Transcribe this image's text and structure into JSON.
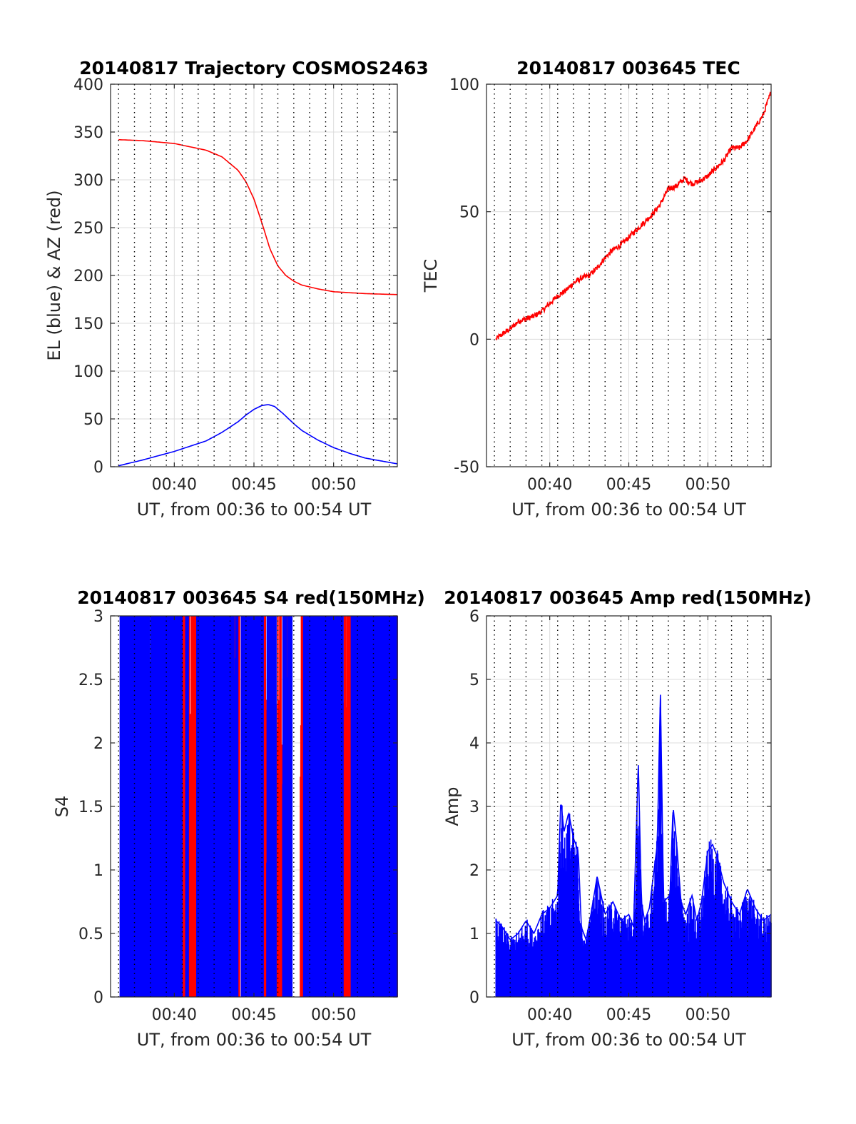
{
  "figure_background": "#ffffff",
  "colors": {
    "red": "#ff0000",
    "blue": "#0000ff",
    "grid": "#dcdcdc",
    "axis": "#262626"
  },
  "chart_data": [
    {
      "id": "trajectory",
      "type": "line",
      "title": "20140817 Trajectory COSMOS2463",
      "xlabel": "UT, from 00:36 to 00:54 UT",
      "ylabel": "EL (blue) & AZ (red)",
      "xlim": [
        36.0,
        54.0
      ],
      "ylim": [
        0,
        400
      ],
      "yticks": [
        0,
        50,
        100,
        150,
        200,
        250,
        300,
        350,
        400
      ],
      "xticks": [
        40,
        45,
        50
      ],
      "xtick_labels": [
        "00:40",
        "00:45",
        "00:50"
      ],
      "grid": true,
      "dotted_x_gridlines": [
        36.5,
        37.5,
        38.5,
        39.5,
        40.5,
        41.5,
        42.5,
        43.5,
        44.5,
        45.5,
        46.5,
        47.5,
        48.5,
        49.5,
        50.5,
        51.5,
        52.5,
        53.5
      ],
      "series": [
        {
          "color": "#ff0000",
          "x": [
            36.5,
            38,
            40,
            42,
            43,
            44,
            44.5,
            45,
            45.5,
            46,
            46.5,
            47,
            47.5,
            48,
            49,
            50,
            51,
            52,
            53,
            54
          ],
          "y": [
            342,
            341,
            338,
            331,
            324,
            310,
            298,
            280,
            255,
            228,
            210,
            200,
            194,
            190,
            186,
            183,
            182,
            181,
            180.5,
            180
          ]
        },
        {
          "color": "#0000ff",
          "x": [
            36.5,
            38,
            40,
            42,
            43,
            44,
            44.5,
            45,
            45.5,
            45.9,
            46.3,
            46.8,
            47.5,
            48,
            49,
            50,
            51,
            52,
            53,
            54
          ],
          "y": [
            1,
            7,
            16,
            27,
            36,
            47,
            54,
            60,
            64,
            65,
            63,
            56,
            45,
            38,
            28,
            20,
            14,
            9,
            6,
            3
          ]
        }
      ]
    },
    {
      "id": "tec",
      "type": "line",
      "title": "20140817 003645 TEC",
      "xlabel": "UT, from 00:36 to 00:54 UT",
      "ylabel": "TEC",
      "xlim": [
        36.0,
        54.0
      ],
      "ylim": [
        -50,
        100
      ],
      "yticks": [
        -50,
        0,
        50,
        100
      ],
      "xticks": [
        40,
        45,
        50
      ],
      "xtick_labels": [
        "00:40",
        "00:45",
        "00:50"
      ],
      "grid": true,
      "dotted_x_gridlines": [
        36.5,
        37.5,
        38.5,
        39.5,
        40.5,
        41.5,
        42.5,
        43.5,
        44.5,
        45.5,
        46.5,
        47.5,
        48.5,
        49.5,
        50.5,
        51.5,
        52.5,
        53.5
      ],
      "series": [
        {
          "color": "#ff0000",
          "x": [
            36.6,
            37,
            37.5,
            38,
            38.5,
            39,
            39.5,
            40,
            40.5,
            41,
            41.5,
            42,
            42.5,
            43,
            43.5,
            44,
            44.5,
            45,
            45.5,
            46,
            46.5,
            47,
            47.5,
            48,
            48.5,
            49,
            49.5,
            50,
            50.5,
            51,
            51.5,
            52,
            52.5,
            53,
            53.5,
            54
          ],
          "y": [
            0,
            2,
            4,
            7,
            8,
            9,
            11,
            14,
            17,
            19,
            22,
            24,
            25,
            28,
            32,
            35,
            37,
            40,
            43,
            46,
            49,
            53,
            59,
            60,
            63,
            61,
            62,
            64,
            67,
            70,
            75,
            75,
            78,
            83,
            88,
            97
          ]
        }
      ]
    },
    {
      "id": "s4",
      "type": "line",
      "title": "20140817 003645 S4 red(150MHz)",
      "xlabel": "UT, from 00:36 to 00:54 UT",
      "ylabel": "S4",
      "xlim": [
        36.0,
        54.0
      ],
      "ylim": [
        0,
        3
      ],
      "yticks": [
        0,
        0.5,
        1,
        1.5,
        2,
        2.5,
        3
      ],
      "ytick_labels": [
        "0",
        "0.5",
        "1",
        "1.5",
        "2",
        "2.5",
        "3"
      ],
      "xticks": [
        40,
        45,
        50
      ],
      "xtick_labels": [
        "00:40",
        "00:45",
        "00:50"
      ],
      "grid": true,
      "dotted_x_gridlines": [
        36.5,
        37.5,
        38.5,
        39.5,
        40.5,
        41.5,
        42.5,
        43.5,
        44.5,
        45.5,
        46.5,
        47.5,
        48.5,
        49.5,
        50.5,
        51.5,
        52.5,
        53.5
      ],
      "note_blue_segments": [
        [
          36.6,
          40.5
        ],
        [
          40.7,
          40.9
        ],
        [
          41.4,
          44.0
        ],
        [
          44.2,
          45.6
        ],
        [
          45.8,
          46.4
        ],
        [
          46.8,
          47.4
        ],
        [
          48.1,
          50.6
        ],
        [
          51.1,
          54.0
        ]
      ],
      "note_red_segments": [
        [
          40.3,
          41.6
        ],
        [
          43.6,
          44.1
        ],
        [
          45.5,
          45.8
        ],
        [
          46.3,
          47.2
        ],
        [
          47.9,
          49.2
        ],
        [
          49.8,
          54.0
        ]
      ]
    },
    {
      "id": "amp",
      "type": "line",
      "title": "20140817 003645 Amp red(150MHz)",
      "xlabel": "UT, from 00:36 to 00:54 UT",
      "ylabel": "Amp",
      "xlim": [
        36.0,
        54.0
      ],
      "ylim": [
        0,
        6
      ],
      "yticks": [
        0,
        1,
        2,
        3,
        4,
        5,
        6
      ],
      "xticks": [
        40,
        45,
        50
      ],
      "xtick_labels": [
        "00:40",
        "00:45",
        "00:50"
      ],
      "grid": true,
      "dotted_x_gridlines": [
        36.5,
        37.5,
        38.5,
        39.5,
        40.5,
        41.5,
        42.5,
        43.5,
        44.5,
        45.5,
        46.5,
        47.5,
        48.5,
        49.5,
        50.5,
        51.5,
        52.5,
        53.5
      ],
      "series": [
        {
          "color": "#0000ff",
          "x": [
            36.6,
            37,
            37.5,
            38,
            38.5,
            39,
            39.5,
            40,
            40.5,
            40.7,
            40.9,
            41.2,
            41.5,
            41.8,
            42,
            42.3,
            42.6,
            43,
            43.5,
            44,
            44.5,
            45,
            45.3,
            45.6,
            45.8,
            46,
            46.3,
            46.8,
            47,
            47.2,
            47.6,
            47.8,
            48,
            48.3,
            48.6,
            49,
            49.3,
            49.6,
            50,
            50.3,
            50.6,
            51,
            51.5,
            52,
            52.5,
            53,
            53.5,
            54
          ],
          "y": [
            1.2,
            1.1,
            0.9,
            1.0,
            1.2,
            1.0,
            1.3,
            1.4,
            1.6,
            3.1,
            2.6,
            2.9,
            2.5,
            2.3,
            1.1,
            0.9,
            1.3,
            1.9,
            1.3,
            1.5,
            1.2,
            1.3,
            1.1,
            3.7,
            1.5,
            1.2,
            1.4,
            2.4,
            4.8,
            1.5,
            1.6,
            3.0,
            2.5,
            1.5,
            1.3,
            1.6,
            1.2,
            1.5,
            2.3,
            2.4,
            2.2,
            1.8,
            1.5,
            1.3,
            1.7,
            1.4,
            1.2,
            1.3
          ]
        }
      ]
    }
  ]
}
